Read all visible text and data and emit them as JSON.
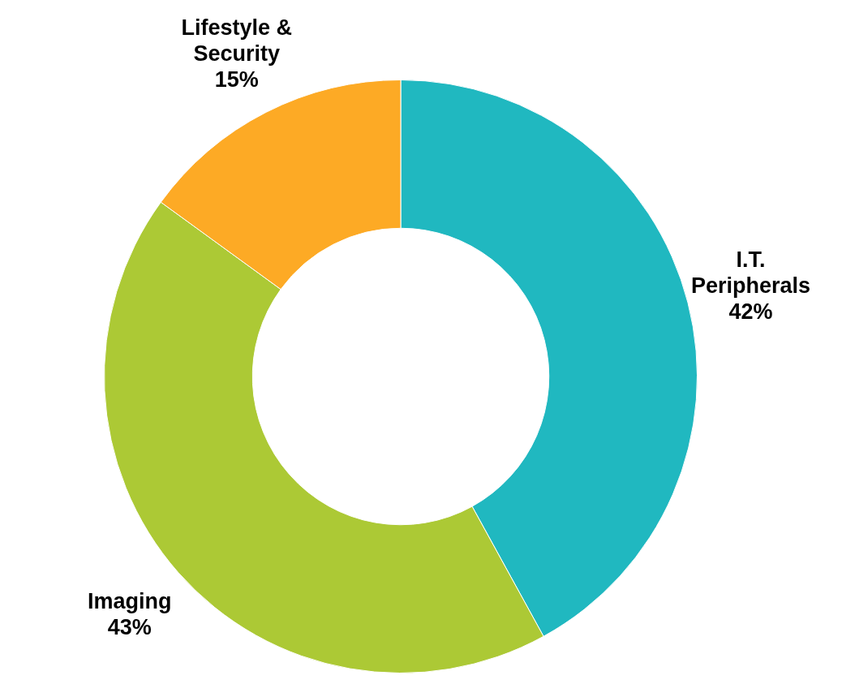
{
  "chart_data": {
    "type": "donut",
    "categories": [
      "I.T. Peripherals",
      "Imaging",
      "Lifestyle & Security"
    ],
    "values": [
      42,
      43,
      15
    ],
    "colors": [
      "#20b8c0",
      "#acc935",
      "#fdaa25"
    ],
    "value_labels": [
      "42%",
      "43%",
      "15%"
    ],
    "legend": false
  }
}
